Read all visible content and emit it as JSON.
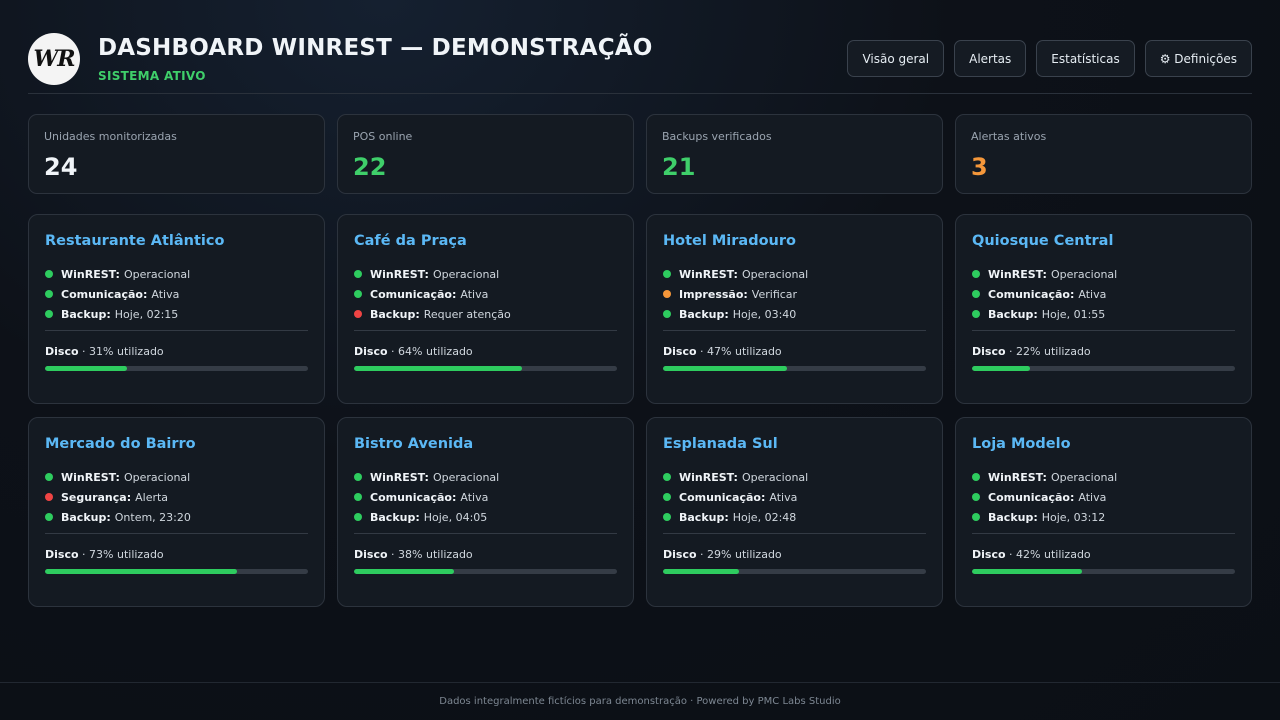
{
  "header": {
    "logo_text": "WR",
    "title": "DASHBOARD WINREST — DEMONSTRAÇÃO",
    "status": "SISTEMA ATIVO"
  },
  "nav": [
    {
      "label": "Visão geral"
    },
    {
      "label": "Alertas"
    },
    {
      "label": "Estatísticas"
    },
    {
      "label": "⚙ Definições"
    }
  ],
  "stats": [
    {
      "label": "Unidades monitorizadas",
      "value": "24",
      "color": "#f0f4f8"
    },
    {
      "label": "POS online",
      "value": "22",
      "color": "#3fcf6a"
    },
    {
      "label": "Backups verificados",
      "value": "21",
      "color": "#3fcf6a"
    },
    {
      "label": "Alertas ativos",
      "value": "3",
      "color": "#f5973a"
    }
  ],
  "status_colors": {
    "ok": "#2ecc5f",
    "warn": "#f5973a",
    "error": "#ef4444"
  },
  "cards": [
    {
      "name": "Restaurante Atlântico",
      "lines": [
        {
          "key": "WinREST:",
          "value": "Operacional",
          "state": "ok"
        },
        {
          "key": "Comunicação:",
          "value": "Ativa",
          "state": "ok"
        },
        {
          "key": "Backup:",
          "value": "Hoje, 02:15",
          "state": "ok"
        }
      ],
      "disk_label": "Disco",
      "disk_text": "31% utilizado",
      "disk_pct": 31
    },
    {
      "name": "Café da Praça",
      "lines": [
        {
          "key": "WinREST:",
          "value": "Operacional",
          "state": "ok"
        },
        {
          "key": "Comunicação:",
          "value": "Ativa",
          "state": "ok"
        },
        {
          "key": "Backup:",
          "value": "Requer atenção",
          "state": "error"
        }
      ],
      "disk_label": "Disco",
      "disk_text": "64% utilizado",
      "disk_pct": 64
    },
    {
      "name": "Hotel Miradouro",
      "lines": [
        {
          "key": "WinREST:",
          "value": "Operacional",
          "state": "ok"
        },
        {
          "key": "Impressão:",
          "value": "Verificar",
          "state": "warn"
        },
        {
          "key": "Backup:",
          "value": "Hoje, 03:40",
          "state": "ok"
        }
      ],
      "disk_label": "Disco",
      "disk_text": "47% utilizado",
      "disk_pct": 47
    },
    {
      "name": "Quiosque Central",
      "lines": [
        {
          "key": "WinREST:",
          "value": "Operacional",
          "state": "ok"
        },
        {
          "key": "Comunicação:",
          "value": "Ativa",
          "state": "ok"
        },
        {
          "key": "Backup:",
          "value": "Hoje, 01:55",
          "state": "ok"
        }
      ],
      "disk_label": "Disco",
      "disk_text": "22% utilizado",
      "disk_pct": 22
    },
    {
      "name": "Mercado do Bairro",
      "lines": [
        {
          "key": "WinREST:",
          "value": "Operacional",
          "state": "ok"
        },
        {
          "key": "Segurança:",
          "value": "Alerta",
          "state": "error"
        },
        {
          "key": "Backup:",
          "value": "Ontem, 23:20",
          "state": "ok"
        }
      ],
      "disk_label": "Disco",
      "disk_text": "73% utilizado",
      "disk_pct": 73
    },
    {
      "name": "Bistro Avenida",
      "lines": [
        {
          "key": "WinREST:",
          "value": "Operacional",
          "state": "ok"
        },
        {
          "key": "Comunicação:",
          "value": "Ativa",
          "state": "ok"
        },
        {
          "key": "Backup:",
          "value": "Hoje, 04:05",
          "state": "ok"
        }
      ],
      "disk_label": "Disco",
      "disk_text": "38% utilizado",
      "disk_pct": 38
    },
    {
      "name": "Esplanada Sul",
      "lines": [
        {
          "key": "WinREST:",
          "value": "Operacional",
          "state": "ok"
        },
        {
          "key": "Comunicação:",
          "value": "Ativa",
          "state": "ok"
        },
        {
          "key": "Backup:",
          "value": "Hoje, 02:48",
          "state": "ok"
        }
      ],
      "disk_label": "Disco",
      "disk_text": "29% utilizado",
      "disk_pct": 29
    },
    {
      "name": "Loja Modelo",
      "lines": [
        {
          "key": "WinREST:",
          "value": "Operacional",
          "state": "ok"
        },
        {
          "key": "Comunicação:",
          "value": "Ativa",
          "state": "ok"
        },
        {
          "key": "Backup:",
          "value": "Hoje, 03:12",
          "state": "ok"
        }
      ],
      "disk_label": "Disco",
      "disk_text": "42% utilizado",
      "disk_pct": 42
    }
  ],
  "footer": {
    "text": "Dados integralmente fictícios para demonstração · Powered by PMC Labs Studio"
  }
}
